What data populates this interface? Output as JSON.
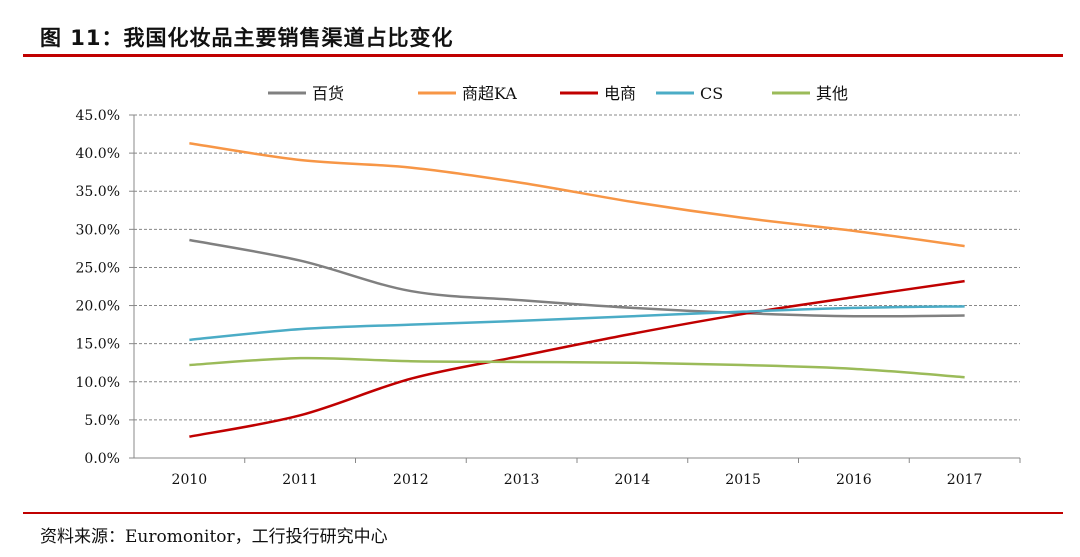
{
  "title": "图 11：我国化妆品主要销售渠道占比变化",
  "source": "资料来源：Euromonitor，工行投行研究中心",
  "chart_data": {
    "type": "line",
    "categories": [
      "2010",
      "2011",
      "2012",
      "2013",
      "2014",
      "2015",
      "2016",
      "2017"
    ],
    "ylim": [
      0,
      45
    ],
    "yticks": [
      "0.0%",
      "5.0%",
      "10.0%",
      "15.0%",
      "20.0%",
      "25.0%",
      "30.0%",
      "35.0%",
      "40.0%",
      "45.0%"
    ],
    "grid": true,
    "legend": "top",
    "series": [
      {
        "name": "百货",
        "color": "#808080",
        "values": [
          28.6,
          25.9,
          21.9,
          20.7,
          19.7,
          19.0,
          18.6,
          18.7
        ]
      },
      {
        "name": "商超KA",
        "color": "#f79646",
        "values": [
          41.3,
          39.1,
          38.1,
          36.1,
          33.6,
          31.5,
          29.8,
          27.8
        ]
      },
      {
        "name": "电商",
        "color": "#c00000",
        "values": [
          2.8,
          5.6,
          10.4,
          13.4,
          16.3,
          18.9,
          21.1,
          23.2
        ]
      },
      {
        "name": "CS",
        "color": "#4bacc6",
        "values": [
          15.5,
          16.9,
          17.5,
          18.0,
          18.6,
          19.2,
          19.7,
          19.9
        ]
      },
      {
        "name": "其他",
        "color": "#9bbb59",
        "values": [
          12.2,
          13.1,
          12.7,
          12.6,
          12.5,
          12.2,
          11.7,
          10.6
        ]
      }
    ]
  }
}
